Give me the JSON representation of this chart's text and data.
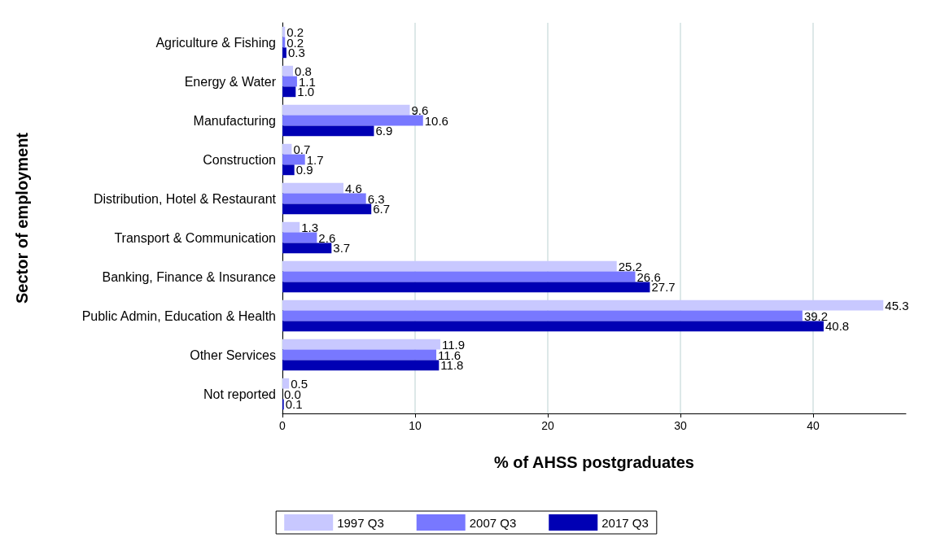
{
  "chart_data": {
    "type": "bar",
    "orientation": "horizontal",
    "xlabel": "% of AHSS postgraduates",
    "ylabel": "Sector of employment",
    "categories": [
      "Agriculture & Fishing",
      "Energy & Water",
      "Manufacturing",
      "Construction",
      "Distribution, Hotel & Restaurant",
      "Transport & Communication",
      "Banking, Finance & Insurance",
      "Public Admin, Education & Health",
      "Other Services",
      "Not reported"
    ],
    "series": [
      {
        "name": "1997 Q3",
        "color": "#c8c8ff",
        "values": [
          0.2,
          0.8,
          9.6,
          0.7,
          4.6,
          1.3,
          25.2,
          45.3,
          11.9,
          0.5
        ],
        "value_labels": [
          "0.2",
          "0.8",
          "9.6",
          "0.7",
          "4.6",
          "1.3",
          "25.2",
          "45.3",
          "11.9",
          "0.5"
        ]
      },
      {
        "name": "2007 Q3",
        "color": "#7878ff",
        "values": [
          0.2,
          1.1,
          10.6,
          1.7,
          6.3,
          2.6,
          26.6,
          39.2,
          11.6,
          0.0
        ],
        "value_labels": [
          "0.2",
          "1.1",
          "10.6",
          "1.7",
          "6.3",
          "2.6",
          "26.6",
          "39.2",
          "11.6",
          "0.0"
        ]
      },
      {
        "name": "2017 Q3",
        "color": "#0000b4",
        "values": [
          0.3,
          1.0,
          6.9,
          0.9,
          6.7,
          3.7,
          27.7,
          40.8,
          11.8,
          0.1
        ],
        "value_labels": [
          "0.3",
          "1.0",
          "6.9",
          "0.9",
          "6.7",
          "3.7",
          "27.7",
          "40.8",
          "11.8",
          "0.1"
        ]
      }
    ],
    "xlim": [
      0,
      47
    ],
    "xticks": [
      0,
      10,
      20,
      30,
      40
    ],
    "grid": "x",
    "legend": "bottom"
  }
}
